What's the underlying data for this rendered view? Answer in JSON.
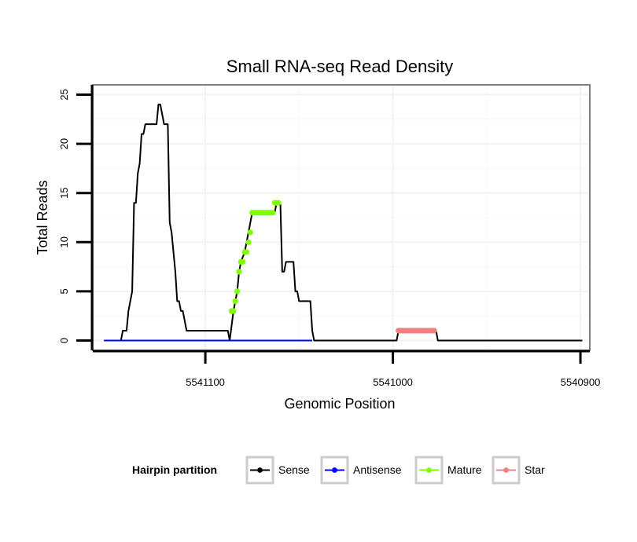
{
  "chart_data": {
    "type": "line",
    "title": "Small RNA-seq Read Density",
    "xlabel": "Genomic Position",
    "ylabel": "Total Reads",
    "xlim": [
      5541160,
      5540895
    ],
    "x_reversed": true,
    "ylim": [
      -1,
      26
    ],
    "xticks": [
      5541100,
      5541000,
      5540900
    ],
    "xtick_labels": [
      "5541100",
      "5541000",
      "5540900"
    ],
    "yticks": [
      0,
      5,
      10,
      15,
      20,
      25
    ],
    "ytick_labels": [
      "0",
      "5",
      "10",
      "15",
      "20",
      "25"
    ],
    "grid": true,
    "legend": {
      "title": "Hairpin partition",
      "position": "bottom",
      "entries": [
        "Sense",
        "Antisense",
        "Mature",
        "Star"
      ]
    },
    "series": [
      {
        "name": "Sense",
        "color": "#000000",
        "style": "line",
        "points": [
          [
            5541154,
            0
          ],
          [
            5541145,
            0
          ],
          [
            5541144,
            1
          ],
          [
            5541142,
            1
          ],
          [
            5541141,
            3
          ],
          [
            5541139,
            5
          ],
          [
            5541138,
            14
          ],
          [
            5541137,
            14
          ],
          [
            5541136,
            17
          ],
          [
            5541135,
            18
          ],
          [
            5541134,
            21
          ],
          [
            5541133,
            21
          ],
          [
            5541132,
            22
          ],
          [
            5541126,
            22
          ],
          [
            5541125,
            24
          ],
          [
            5541124,
            24
          ],
          [
            5541122,
            22
          ],
          [
            5541120,
            22
          ],
          [
            5541119,
            12
          ],
          [
            5541118,
            11
          ],
          [
            5541116,
            7
          ],
          [
            5541115,
            4
          ],
          [
            5541114,
            4
          ],
          [
            5541113,
            3
          ],
          [
            5541112,
            3
          ],
          [
            5541110,
            1
          ],
          [
            5541088,
            1
          ],
          [
            5541087,
            0
          ],
          [
            5541085,
            3
          ],
          [
            5541084,
            4
          ],
          [
            5541083,
            5
          ],
          [
            5541082,
            7
          ],
          [
            5541081,
            8
          ],
          [
            5541079,
            9
          ],
          [
            5541077,
            11
          ],
          [
            5541075,
            13
          ],
          [
            5541063,
            13
          ],
          [
            5541062,
            14
          ],
          [
            5541060,
            14
          ],
          [
            5541059,
            7
          ],
          [
            5541058,
            7
          ],
          [
            5541057,
            8
          ],
          [
            5541053,
            8
          ],
          [
            5541052,
            5
          ],
          [
            5541051,
            5
          ],
          [
            5541050,
            4
          ],
          [
            5541044,
            4
          ],
          [
            5541043,
            1
          ],
          [
            5541042,
            0
          ],
          [
            5540998,
            0
          ],
          [
            5540997,
            1
          ],
          [
            5540977,
            1
          ],
          [
            5540976,
            0
          ],
          [
            5540899,
            0
          ]
        ]
      },
      {
        "name": "Antisense",
        "color": "#0000ff",
        "style": "line",
        "points": [
          [
            5541154,
            0
          ],
          [
            5541043,
            0
          ]
        ]
      },
      {
        "name": "Mature",
        "color": "#7fff00",
        "style": "points",
        "points": [
          [
            5541086,
            3
          ],
          [
            5541085,
            3
          ],
          [
            5541084,
            4
          ],
          [
            5541083,
            5
          ],
          [
            5541082,
            7
          ],
          [
            5541081,
            8
          ],
          [
            5541080,
            8
          ],
          [
            5541079,
            9
          ],
          [
            5541078,
            9
          ],
          [
            5541077,
            10
          ],
          [
            5541076,
            11
          ],
          [
            5541075,
            13
          ],
          [
            5541074,
            13
          ],
          [
            5541073,
            13
          ],
          [
            5541072,
            13
          ],
          [
            5541071,
            13
          ],
          [
            5541070,
            13
          ],
          [
            5541069,
            13
          ],
          [
            5541068,
            13
          ],
          [
            5541067,
            13
          ],
          [
            5541066,
            13
          ],
          [
            5541065,
            13
          ],
          [
            5541064,
            13
          ],
          [
            5541063,
            14
          ],
          [
            5541062,
            14
          ],
          [
            5541061,
            14
          ]
        ]
      },
      {
        "name": "Star",
        "color": "#f08080",
        "style": "points",
        "points": [
          [
            5540997,
            1
          ],
          [
            5540996,
            1
          ],
          [
            5540995,
            1
          ],
          [
            5540994,
            1
          ],
          [
            5540993,
            1
          ],
          [
            5540992,
            1
          ],
          [
            5540991,
            1
          ],
          [
            5540990,
            1
          ],
          [
            5540989,
            1
          ],
          [
            5540988,
            1
          ],
          [
            5540987,
            1
          ],
          [
            5540986,
            1
          ],
          [
            5540985,
            1
          ],
          [
            5540984,
            1
          ],
          [
            5540983,
            1
          ],
          [
            5540982,
            1
          ],
          [
            5540981,
            1
          ],
          [
            5540980,
            1
          ],
          [
            5540979,
            1
          ],
          [
            5540978,
            1
          ]
        ]
      }
    ]
  }
}
